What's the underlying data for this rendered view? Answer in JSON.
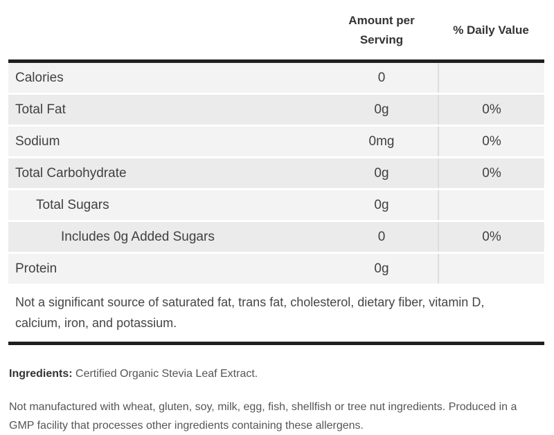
{
  "header": {
    "amount_col": "Amount per Serving",
    "dv_col": "% Daily Value"
  },
  "rows": [
    {
      "label": "Calories",
      "amount": "0",
      "dv": ""
    },
    {
      "label": "Total Fat",
      "amount": "0g",
      "dv": "0%"
    },
    {
      "label": "Sodium",
      "amount": "0mg",
      "dv": "0%"
    },
    {
      "label": "Total Carbohydrate",
      "amount": "0g",
      "dv": "0%"
    },
    {
      "label": "Total Sugars",
      "amount": "0g",
      "dv": ""
    },
    {
      "label": "Includes 0g Added Sugars",
      "amount": "0",
      "dv": "0%"
    },
    {
      "label": "Protein",
      "amount": "0g",
      "dv": ""
    }
  ],
  "footnote": "Not a significant source of saturated fat, trans fat, cholesterol, dietary fiber, vitamin D, calcium, iron, and potassium.",
  "ingredients": {
    "label": "Ingredients:",
    "text": "Certified Organic Stevia Leaf Extract."
  },
  "allergen_note": "Not manufactured with wheat, gluten, soy, milk, egg, fish, shellfish or tree nut ingredients. Produced in a GMP facility that processes other ingredients containing these allergens.",
  "colors": {
    "thick_rule": "#1f1f1f",
    "row_light": "#f3f3f3",
    "row_dark": "#ebebeb",
    "column_divider": "#dcdcdc",
    "text_primary": "#404040",
    "text_secondary": "#555555"
  }
}
